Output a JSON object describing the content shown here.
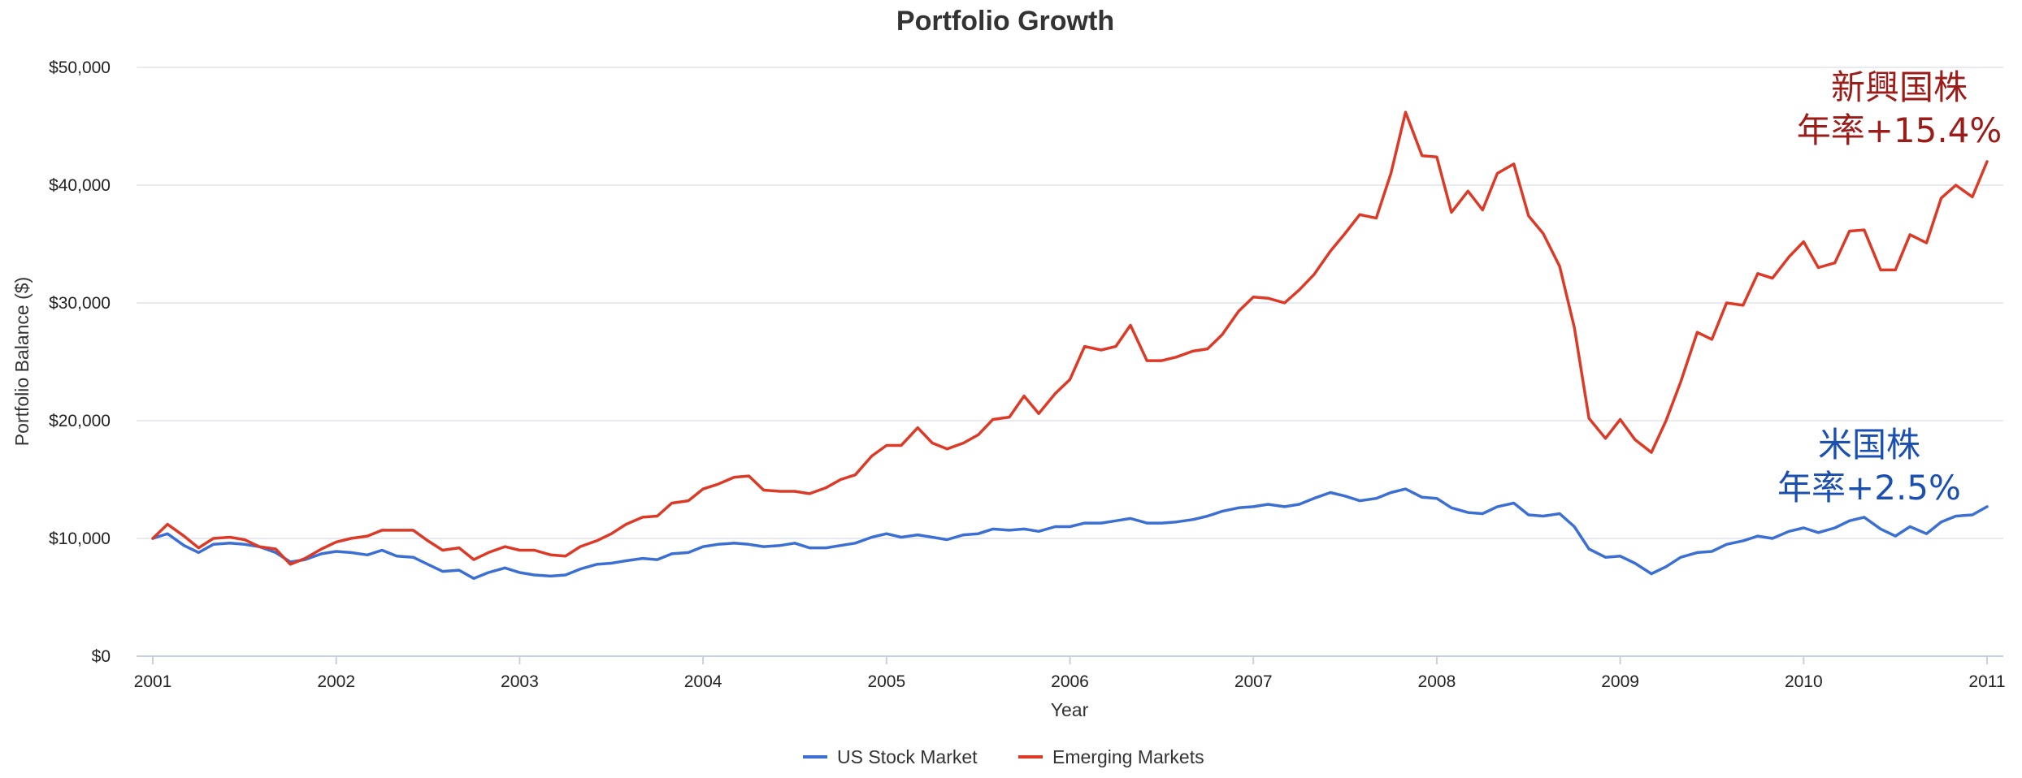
{
  "chart_data": {
    "type": "line",
    "title": "Portfolio Growth",
    "xlabel": "Year",
    "ylabel": "Portfolio Balance ($)",
    "xlim": [
      2001,
      2011
    ],
    "ylim": [
      0,
      50000
    ],
    "y_ticks": [
      0,
      10000,
      20000,
      30000,
      40000,
      50000
    ],
    "y_tick_labels": [
      "$0",
      "$10,000",
      "$20,000",
      "$30,000",
      "$40,000",
      "$50,000"
    ],
    "x_ticks": [
      2001,
      2002,
      2003,
      2004,
      2005,
      2006,
      2007,
      2008,
      2009,
      2010,
      2011
    ],
    "x_tick_labels": [
      "2001",
      "2002",
      "2003",
      "2004",
      "2005",
      "2006",
      "2007",
      "2008",
      "2009",
      "2010",
      "2011"
    ],
    "grid": "horizontal",
    "legend_position": "bottom-center",
    "series": [
      {
        "name": "US Stock Market",
        "color": "#3b6fd4",
        "points": [
          [
            2001.0,
            10000
          ],
          [
            2001.08,
            10400
          ],
          [
            2001.17,
            9400
          ],
          [
            2001.25,
            8800
          ],
          [
            2001.33,
            9500
          ],
          [
            2001.42,
            9600
          ],
          [
            2001.5,
            9500
          ],
          [
            2001.58,
            9300
          ],
          [
            2001.67,
            8800
          ],
          [
            2001.75,
            8000
          ],
          [
            2001.83,
            8200
          ],
          [
            2001.92,
            8700
          ],
          [
            2002.0,
            8900
          ],
          [
            2002.08,
            8800
          ],
          [
            2002.17,
            8600
          ],
          [
            2002.25,
            9000
          ],
          [
            2002.33,
            8500
          ],
          [
            2002.42,
            8400
          ],
          [
            2002.5,
            7800
          ],
          [
            2002.58,
            7200
          ],
          [
            2002.67,
            7300
          ],
          [
            2002.75,
            6600
          ],
          [
            2002.83,
            7100
          ],
          [
            2002.92,
            7500
          ],
          [
            2003.0,
            7100
          ],
          [
            2003.08,
            6900
          ],
          [
            2003.17,
            6800
          ],
          [
            2003.25,
            6900
          ],
          [
            2003.33,
            7400
          ],
          [
            2003.42,
            7800
          ],
          [
            2003.5,
            7900
          ],
          [
            2003.58,
            8100
          ],
          [
            2003.67,
            8300
          ],
          [
            2003.75,
            8200
          ],
          [
            2003.83,
            8700
          ],
          [
            2003.92,
            8800
          ],
          [
            2004.0,
            9300
          ],
          [
            2004.08,
            9500
          ],
          [
            2004.17,
            9600
          ],
          [
            2004.25,
            9500
          ],
          [
            2004.33,
            9300
          ],
          [
            2004.42,
            9400
          ],
          [
            2004.5,
            9600
          ],
          [
            2004.58,
            9200
          ],
          [
            2004.67,
            9200
          ],
          [
            2004.75,
            9400
          ],
          [
            2004.83,
            9600
          ],
          [
            2004.92,
            10100
          ],
          [
            2005.0,
            10400
          ],
          [
            2005.08,
            10100
          ],
          [
            2005.17,
            10300
          ],
          [
            2005.25,
            10100
          ],
          [
            2005.33,
            9900
          ],
          [
            2005.42,
            10300
          ],
          [
            2005.5,
            10400
          ],
          [
            2005.58,
            10800
          ],
          [
            2005.67,
            10700
          ],
          [
            2005.75,
            10800
          ],
          [
            2005.83,
            10600
          ],
          [
            2005.92,
            11000
          ],
          [
            2006.0,
            11000
          ],
          [
            2006.08,
            11300
          ],
          [
            2006.17,
            11300
          ],
          [
            2006.25,
            11500
          ],
          [
            2006.33,
            11700
          ],
          [
            2006.42,
            11300
          ],
          [
            2006.5,
            11300
          ],
          [
            2006.58,
            11400
          ],
          [
            2006.67,
            11600
          ],
          [
            2006.75,
            11900
          ],
          [
            2006.83,
            12300
          ],
          [
            2006.92,
            12600
          ],
          [
            2007.0,
            12700
          ],
          [
            2007.08,
            12900
          ],
          [
            2007.17,
            12700
          ],
          [
            2007.25,
            12900
          ],
          [
            2007.33,
            13400
          ],
          [
            2007.42,
            13900
          ],
          [
            2007.5,
            13600
          ],
          [
            2007.58,
            13200
          ],
          [
            2007.67,
            13400
          ],
          [
            2007.75,
            13900
          ],
          [
            2007.83,
            14200
          ],
          [
            2007.92,
            13500
          ],
          [
            2008.0,
            13400
          ],
          [
            2008.08,
            12600
          ],
          [
            2008.17,
            12200
          ],
          [
            2008.25,
            12100
          ],
          [
            2008.33,
            12700
          ],
          [
            2008.42,
            13000
          ],
          [
            2008.5,
            12000
          ],
          [
            2008.58,
            11900
          ],
          [
            2008.67,
            12100
          ],
          [
            2008.75,
            11000
          ],
          [
            2008.83,
            9100
          ],
          [
            2008.92,
            8400
          ],
          [
            2009.0,
            8500
          ],
          [
            2009.08,
            7900
          ],
          [
            2009.17,
            7000
          ],
          [
            2009.25,
            7600
          ],
          [
            2009.33,
            8400
          ],
          [
            2009.42,
            8800
          ],
          [
            2009.5,
            8900
          ],
          [
            2009.58,
            9500
          ],
          [
            2009.67,
            9800
          ],
          [
            2009.75,
            10200
          ],
          [
            2009.83,
            10000
          ],
          [
            2009.92,
            10600
          ],
          [
            2010.0,
            10900
          ],
          [
            2010.08,
            10500
          ],
          [
            2010.17,
            10900
          ],
          [
            2010.25,
            11500
          ],
          [
            2010.33,
            11800
          ],
          [
            2010.42,
            10800
          ],
          [
            2010.5,
            10200
          ],
          [
            2010.58,
            11000
          ],
          [
            2010.67,
            10400
          ],
          [
            2010.75,
            11400
          ],
          [
            2010.83,
            11900
          ],
          [
            2010.92,
            12000
          ],
          [
            2011.0,
            12700
          ]
        ]
      },
      {
        "name": "Emerging Markets",
        "color": "#dc3a26",
        "points": [
          [
            2001.0,
            10000
          ],
          [
            2001.08,
            11200
          ],
          [
            2001.17,
            10200
          ],
          [
            2001.25,
            9200
          ],
          [
            2001.33,
            10000
          ],
          [
            2001.42,
            10100
          ],
          [
            2001.5,
            9900
          ],
          [
            2001.58,
            9300
          ],
          [
            2001.67,
            9100
          ],
          [
            2001.75,
            7800
          ],
          [
            2001.83,
            8300
          ],
          [
            2001.92,
            9100
          ],
          [
            2002.0,
            9700
          ],
          [
            2002.08,
            10000
          ],
          [
            2002.17,
            10200
          ],
          [
            2002.25,
            10700
          ],
          [
            2002.33,
            10700
          ],
          [
            2002.42,
            10700
          ],
          [
            2002.5,
            9800
          ],
          [
            2002.58,
            9000
          ],
          [
            2002.67,
            9200
          ],
          [
            2002.75,
            8200
          ],
          [
            2002.83,
            8800
          ],
          [
            2002.92,
            9300
          ],
          [
            2003.0,
            9000
          ],
          [
            2003.08,
            9000
          ],
          [
            2003.17,
            8600
          ],
          [
            2003.25,
            8500
          ],
          [
            2003.33,
            9300
          ],
          [
            2003.42,
            9800
          ],
          [
            2003.5,
            10400
          ],
          [
            2003.58,
            11200
          ],
          [
            2003.67,
            11800
          ],
          [
            2003.75,
            11900
          ],
          [
            2003.83,
            13000
          ],
          [
            2003.92,
            13200
          ],
          [
            2004.0,
            14200
          ],
          [
            2004.08,
            14600
          ],
          [
            2004.17,
            15200
          ],
          [
            2004.25,
            15300
          ],
          [
            2004.33,
            14100
          ],
          [
            2004.42,
            14000
          ],
          [
            2004.5,
            14000
          ],
          [
            2004.58,
            13800
          ],
          [
            2004.67,
            14300
          ],
          [
            2004.75,
            15000
          ],
          [
            2004.83,
            15400
          ],
          [
            2004.92,
            17000
          ],
          [
            2005.0,
            17900
          ],
          [
            2005.08,
            17900
          ],
          [
            2005.17,
            19400
          ],
          [
            2005.25,
            18100
          ],
          [
            2005.33,
            17600
          ],
          [
            2005.42,
            18100
          ],
          [
            2005.5,
            18800
          ],
          [
            2005.58,
            20100
          ],
          [
            2005.67,
            20300
          ],
          [
            2005.75,
            22100
          ],
          [
            2005.83,
            20600
          ],
          [
            2005.92,
            22300
          ],
          [
            2006.0,
            23500
          ],
          [
            2006.08,
            26300
          ],
          [
            2006.17,
            26000
          ],
          [
            2006.25,
            26300
          ],
          [
            2006.33,
            28100
          ],
          [
            2006.42,
            25100
          ],
          [
            2006.5,
            25100
          ],
          [
            2006.58,
            25400
          ],
          [
            2006.67,
            25900
          ],
          [
            2006.75,
            26100
          ],
          [
            2006.83,
            27300
          ],
          [
            2006.92,
            29300
          ],
          [
            2007.0,
            30500
          ],
          [
            2007.08,
            30400
          ],
          [
            2007.17,
            30000
          ],
          [
            2007.25,
            31100
          ],
          [
            2007.33,
            32400
          ],
          [
            2007.42,
            34400
          ],
          [
            2007.5,
            35900
          ],
          [
            2007.58,
            37500
          ],
          [
            2007.67,
            37200
          ],
          [
            2007.75,
            41000
          ],
          [
            2007.83,
            46200
          ],
          [
            2007.92,
            42500
          ],
          [
            2008.0,
            42400
          ],
          [
            2008.08,
            37700
          ],
          [
            2008.17,
            39500
          ],
          [
            2008.25,
            37900
          ],
          [
            2008.33,
            41000
          ],
          [
            2008.42,
            41800
          ],
          [
            2008.5,
            37400
          ],
          [
            2008.58,
            35900
          ],
          [
            2008.67,
            33100
          ],
          [
            2008.75,
            27900
          ],
          [
            2008.83,
            20200
          ],
          [
            2008.92,
            18500
          ],
          [
            2009.0,
            20100
          ],
          [
            2009.08,
            18400
          ],
          [
            2009.17,
            17300
          ],
          [
            2009.25,
            20000
          ],
          [
            2009.33,
            23300
          ],
          [
            2009.42,
            27500
          ],
          [
            2009.5,
            26900
          ],
          [
            2009.58,
            30000
          ],
          [
            2009.67,
            29800
          ],
          [
            2009.75,
            32500
          ],
          [
            2009.83,
            32100
          ],
          [
            2009.92,
            33900
          ],
          [
            2010.0,
            35200
          ],
          [
            2010.08,
            33000
          ],
          [
            2010.17,
            33400
          ],
          [
            2010.25,
            36100
          ],
          [
            2010.33,
            36200
          ],
          [
            2010.42,
            32800
          ],
          [
            2010.5,
            32800
          ],
          [
            2010.58,
            35800
          ],
          [
            2010.67,
            35100
          ],
          [
            2010.75,
            38900
          ],
          [
            2010.83,
            40000
          ],
          [
            2010.92,
            39000
          ],
          [
            2011.0,
            42000
          ]
        ]
      }
    ],
    "annotations": [
      {
        "lines": [
          "新興国株",
          "年率+15.4%"
        ],
        "color": "#9b1c18",
        "position": "top-right"
      },
      {
        "lines": [
          "米国株",
          "年率+2.5%"
        ],
        "color": "#1b4fb0",
        "position": "right"
      }
    ]
  }
}
